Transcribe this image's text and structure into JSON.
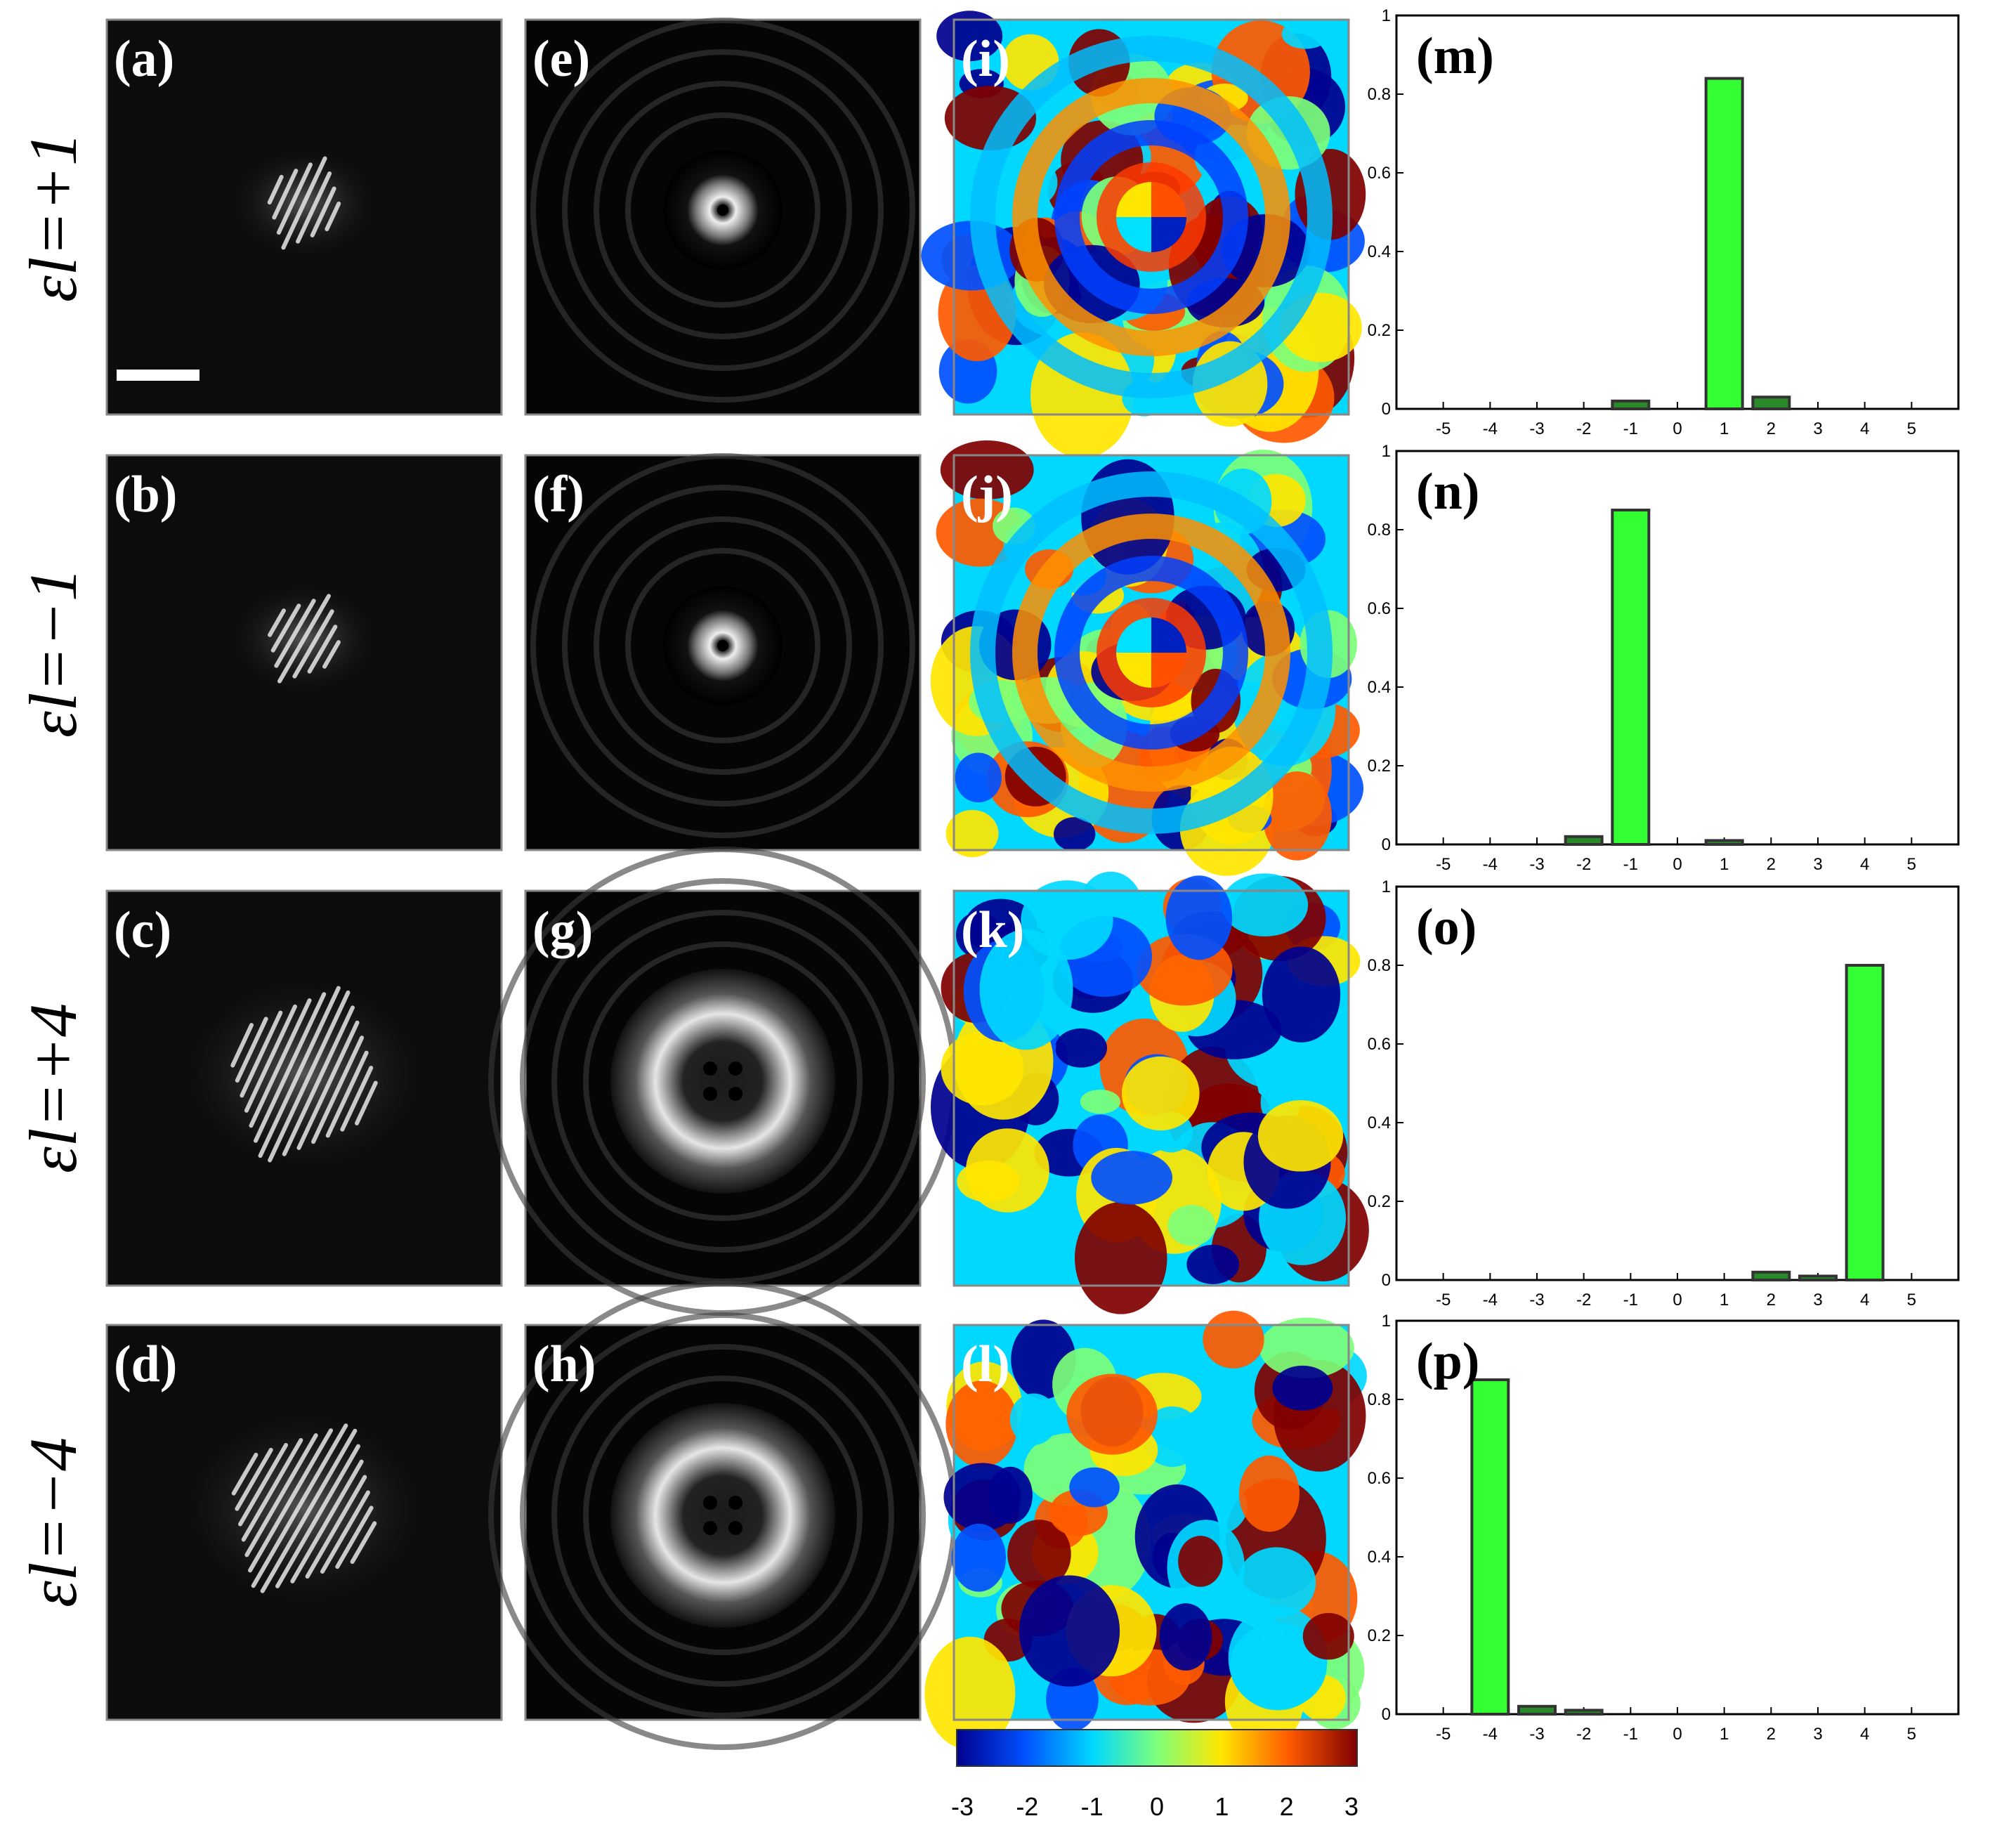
{
  "rows": [
    {
      "label": "εl=+1",
      "panels": [
        "(a)",
        "(e)",
        "(i)",
        "(m)"
      ]
    },
    {
      "label": "εl=−1",
      "panels": [
        "(b)",
        "(f)",
        "(j)",
        "(n)"
      ]
    },
    {
      "label": "εl=+4",
      "panels": [
        "(c)",
        "(g)",
        "(k)",
        "(o)"
      ]
    },
    {
      "label": "εl=−4",
      "panels": [
        "(d)",
        "(h)",
        "(l)",
        "(p)"
      ]
    }
  ],
  "colorbar": {
    "ticks": [
      "-3",
      "-2",
      "-1",
      "0",
      "1",
      "2",
      "3"
    ],
    "colors": [
      "#00008f",
      "#0050ff",
      "#00d8ff",
      "#7dff7a",
      "#ffe600",
      "#ff5a00",
      "#800000"
    ]
  },
  "bar_color": "#33ff33",
  "chart_data": [
    {
      "type": "bar",
      "panel": "(m)",
      "categories": [
        -5,
        -4,
        -3,
        -2,
        -1,
        0,
        1,
        2,
        3,
        4,
        5
      ],
      "values": [
        0,
        0,
        0,
        0,
        0.02,
        0,
        0.84,
        0.03,
        0,
        0,
        0
      ],
      "ylim": [
        0,
        1
      ],
      "yticks": [
        0,
        0.2,
        0.4,
        0.6,
        0.8,
        1
      ]
    },
    {
      "type": "bar",
      "panel": "(n)",
      "categories": [
        -5,
        -4,
        -3,
        -2,
        -1,
        0,
        1,
        2,
        3,
        4,
        5
      ],
      "values": [
        0,
        0,
        0,
        0.02,
        0.85,
        0,
        0.01,
        0,
        0,
        0,
        0
      ],
      "ylim": [
        0,
        1
      ],
      "yticks": [
        0,
        0.2,
        0.4,
        0.6,
        0.8,
        1
      ]
    },
    {
      "type": "bar",
      "panel": "(o)",
      "categories": [
        -5,
        -4,
        -3,
        -2,
        -1,
        0,
        1,
        2,
        3,
        4,
        5
      ],
      "values": [
        0,
        0,
        0,
        0,
        0,
        0,
        0,
        0.02,
        0.01,
        0.8,
        0
      ],
      "ylim": [
        0,
        1
      ],
      "yticks": [
        0,
        0.2,
        0.4,
        0.6,
        0.8,
        1
      ]
    },
    {
      "type": "bar",
      "panel": "(p)",
      "categories": [
        -5,
        -4,
        -3,
        -2,
        -1,
        0,
        1,
        2,
        3,
        4,
        5
      ],
      "values": [
        0,
        0.85,
        0.02,
        0.01,
        0,
        0,
        0,
        0,
        0,
        0,
        0
      ],
      "ylim": [
        0,
        1
      ],
      "yticks": [
        0,
        0.2,
        0.4,
        0.6,
        0.8,
        1
      ]
    }
  ]
}
